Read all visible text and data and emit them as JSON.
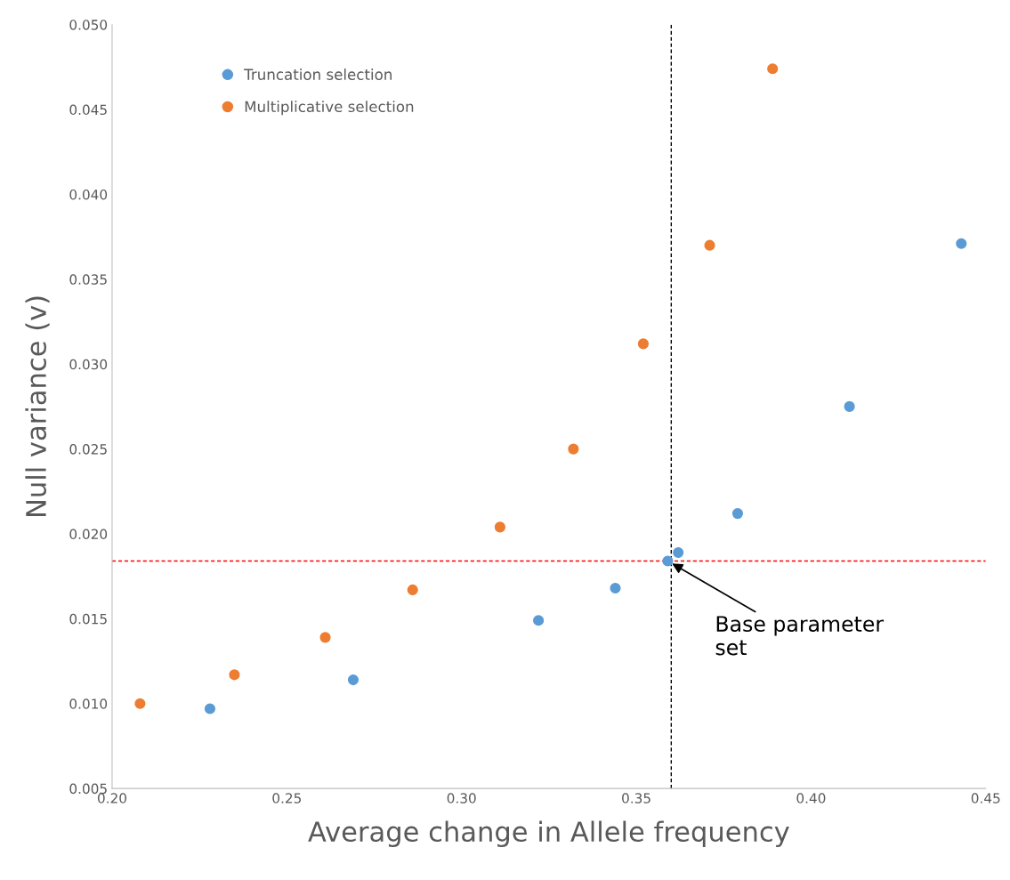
{
  "chart_data": {
    "type": "scatter",
    "xlabel": "Average change in Allele frequency",
    "ylabel": "Null variance (v)",
    "xlim": [
      0.2,
      0.45
    ],
    "xticks": [
      {
        "value": 0.2,
        "label": "0.20"
      },
      {
        "value": 0.25,
        "label": "0.25"
      },
      {
        "value": 0.3,
        "label": "0.30"
      },
      {
        "value": 0.35,
        "label": "0.35"
      },
      {
        "value": 0.4,
        "label": "0.40"
      },
      {
        "value": 0.45,
        "label": "0.45"
      }
    ],
    "ylim": [
      0.005,
      0.05
    ],
    "yticks": [
      {
        "value": 0.005,
        "label": "0.005"
      },
      {
        "value": 0.01,
        "label": "0.010"
      },
      {
        "value": 0.015,
        "label": "0.015"
      },
      {
        "value": 0.02,
        "label": "0.020"
      },
      {
        "value": 0.025,
        "label": "0.025"
      },
      {
        "value": 0.03,
        "label": "0.030"
      },
      {
        "value": 0.035,
        "label": "0.035"
      },
      {
        "value": 0.04,
        "label": "0.040"
      },
      {
        "value": 0.045,
        "label": "0.045"
      },
      {
        "value": 0.05,
        "label": "0.050"
      }
    ],
    "series": [
      {
        "name": "Truncation selection",
        "color": "#5b9bd5",
        "x": [
          0.228,
          0.269,
          0.322,
          0.344,
          0.359,
          0.362,
          0.379,
          0.411,
          0.443
        ],
        "values": [
          0.0097,
          0.0114,
          0.0149,
          0.0168,
          0.0184,
          0.0189,
          0.0212,
          0.0275,
          0.0371
        ]
      },
      {
        "name": "Multiplicative selection",
        "color": "#ed7d31",
        "x": [
          0.208,
          0.235,
          0.261,
          0.286,
          0.311,
          0.332,
          0.352,
          0.371,
          0.389
        ],
        "values": [
          0.01,
          0.0117,
          0.0139,
          0.0167,
          0.0204,
          0.025,
          0.0312,
          0.037,
          0.0474
        ]
      }
    ],
    "ref_lines": [
      {
        "axis": "x",
        "value": 0.36,
        "color": "#000000",
        "line_style": "dashed"
      },
      {
        "axis": "y",
        "value": 0.0184,
        "color": "#ff0000",
        "line_style": "dashed"
      }
    ],
    "annotations": [
      {
        "text": "Base parameter\nset",
        "x": 0.359,
        "y": 0.0184
      }
    ],
    "legend": "top left",
    "grid": false,
    "marker": "circle"
  }
}
